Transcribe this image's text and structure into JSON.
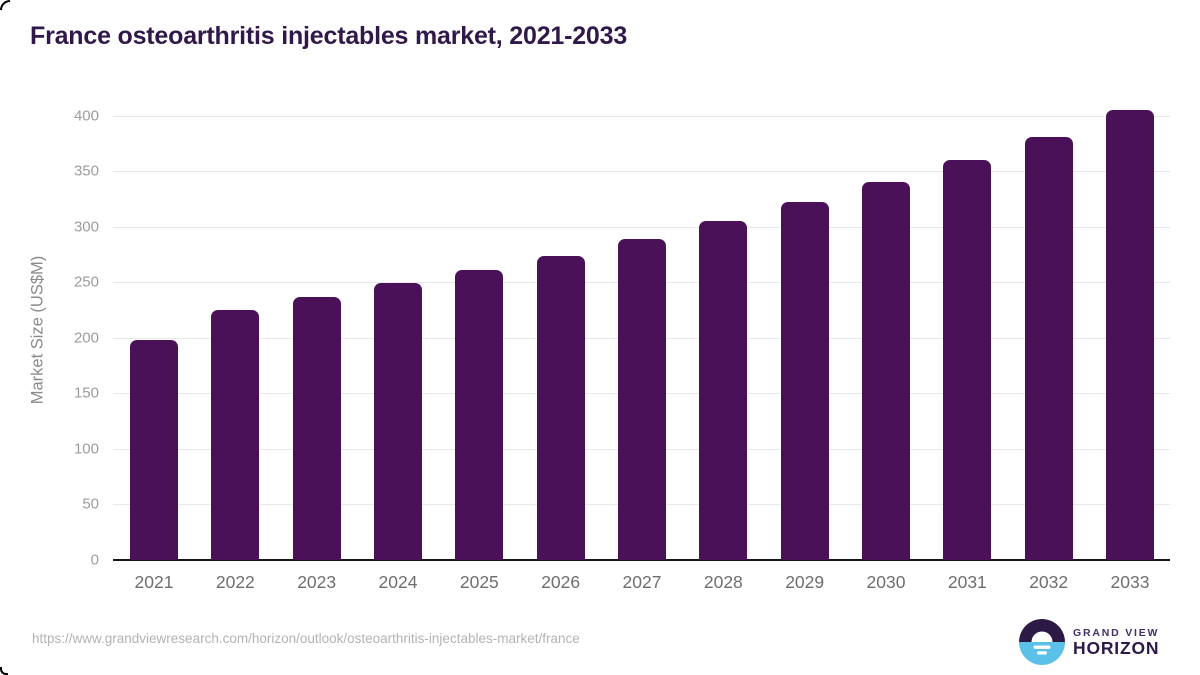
{
  "chart_data": {
    "type": "bar",
    "title": "France osteoarthritis injectables market, 2021-2033",
    "categories": [
      "2021",
      "2022",
      "2023",
      "2024",
      "2025",
      "2026",
      "2027",
      "2028",
      "2029",
      "2030",
      "2031",
      "2032",
      "2033"
    ],
    "values": [
      198,
      225,
      237,
      249,
      261,
      274,
      289,
      305,
      322,
      340,
      360,
      381,
      405
    ],
    "xlabel": "",
    "ylabel": "Market Size (US$M)",
    "ylim": [
      0,
      414
    ],
    "yticks": [
      0,
      50,
      100,
      150,
      200,
      250,
      300,
      350,
      400
    ],
    "grid": true,
    "legend": "none",
    "bar_color": "#4a1158",
    "gridline_color": "#e9e9e9",
    "axis_line_color": "#161616",
    "tick_label_color": "#9c9c9c",
    "category_label_color": "#6e6e6e",
    "title_color": "#30194a"
  },
  "footer": {
    "source_url": "https://www.grandviewresearch.com/horizon/outlook/osteoarthritis-injectables-market/france",
    "logo": {
      "brand": "GRAND VIEW",
      "product": "HORIZON",
      "icon_top_color": "#2d1945",
      "icon_bottom_color": "#5cc1e9"
    }
  }
}
